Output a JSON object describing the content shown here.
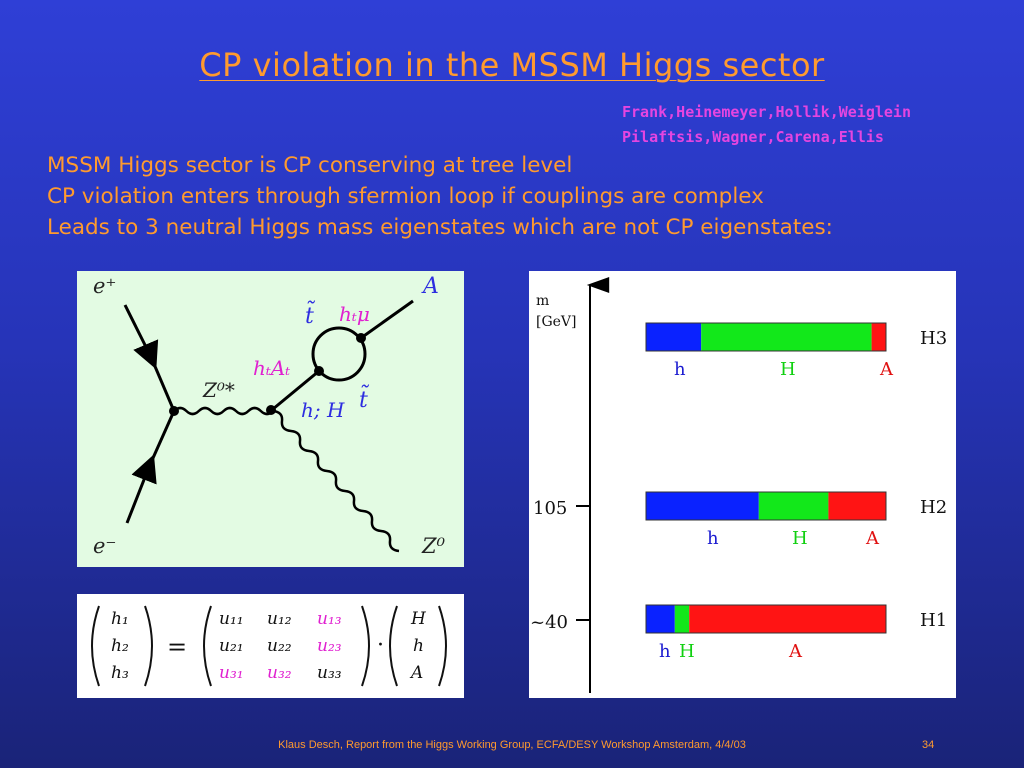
{
  "slide": {
    "title": "CP violation in the MSSM Higgs sector",
    "references": [
      "Frank,Heinemeyer,Hollik,Weiglein",
      "Pilaftsis,Wagner,Carena,Ellis"
    ],
    "bullets": [
      "MSSM Higgs sector is CP conserving at tree level",
      "CP violation enters through sfermion loop if couplings are complex",
      "Leads to 3 neutral Higgs mass eigenstates which are not CP eigenstates:"
    ],
    "footer": "Klaus Desch, Report from the Higgs Working Group, ECFA/DESY Workshop Amsterdam, 4/4/03",
    "page_number": "34"
  },
  "feynman": {
    "labels": {
      "e_plus": "e⁺",
      "e_minus": "e⁻",
      "z_star": "Z⁰*",
      "z0": "Z⁰",
      "a": "A",
      "stop_top": "t̃",
      "stop_bottom": "t̃",
      "ht_mu": "hₜμ",
      "ht_at": "hₜAₜ",
      "h_H": "h; H"
    }
  },
  "matrix": {
    "lhs": [
      "h₁",
      "h₂",
      "h₃"
    ],
    "rows": [
      [
        "u₁₁",
        "u₁₂",
        "u₁₃"
      ],
      [
        "u₂₁",
        "u₂₂",
        "u₂₃"
      ],
      [
        "u₃₁",
        "u₃₂",
        "u₃₃"
      ]
    ],
    "rhs": [
      "H",
      "h",
      "A"
    ],
    "equals": "=",
    "dot": "·",
    "colors": {
      "normal": "#111111",
      "highlight": "#e020d0"
    }
  },
  "mass_plot": {
    "axis_label_line1": "m",
    "axis_label_line2": "[GeV]",
    "ticks": [
      "105",
      "~40"
    ],
    "colors": {
      "h": "#0a22ff",
      "H": "#12e81a",
      "A": "#ff1414"
    },
    "bars": [
      {
        "name": "H3",
        "fractions": {
          "h": 0.23,
          "H": 0.71,
          "A": 0.06
        },
        "labels": [
          {
            "text": "h",
            "color": "#1a1ad0"
          },
          {
            "text": "H",
            "color": "#10d010"
          },
          {
            "text": "A",
            "color": "#e01010"
          }
        ]
      },
      {
        "name": "H2",
        "fractions": {
          "h": 0.47,
          "H": 0.29,
          "A": 0.24
        },
        "labels": [
          {
            "text": "h",
            "color": "#1a1ad0"
          },
          {
            "text": "H",
            "color": "#10d010"
          },
          {
            "text": "A",
            "color": "#e01010"
          }
        ]
      },
      {
        "name": "H1",
        "fractions": {
          "h": 0.12,
          "H": 0.06,
          "A": 0.82
        },
        "labels": [
          {
            "text": "h",
            "color": "#1a1ad0"
          },
          {
            "text": "H",
            "color": "#10d010"
          },
          {
            "text": "A",
            "color": "#e01010"
          }
        ]
      }
    ]
  }
}
